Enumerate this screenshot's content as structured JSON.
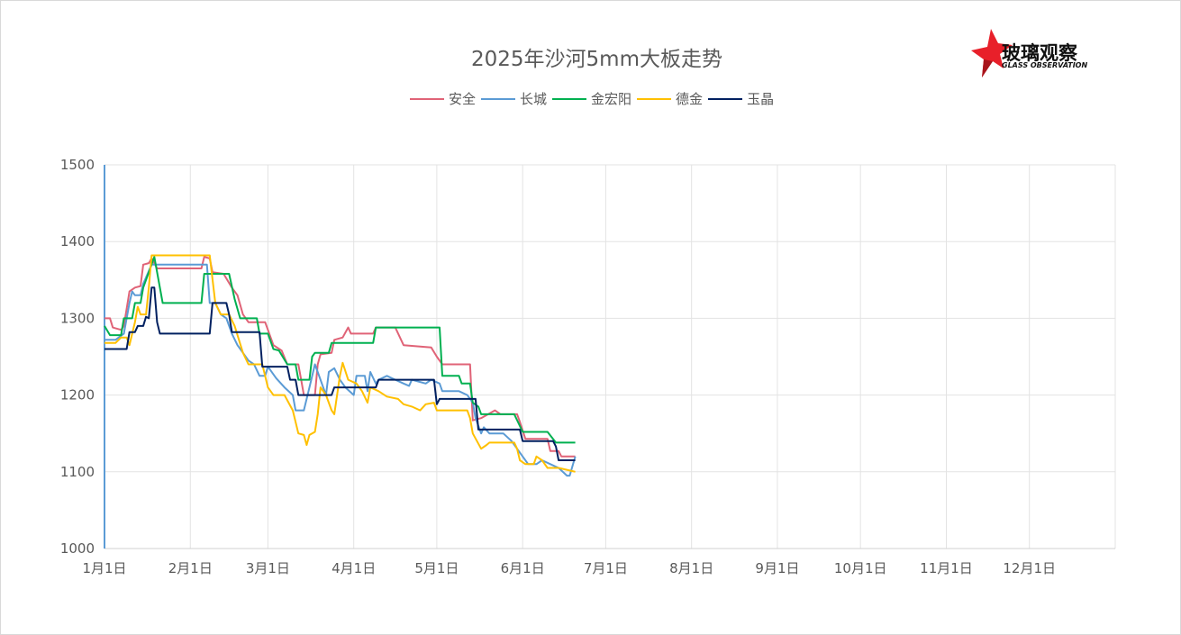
{
  "chart_data": {
    "type": "line",
    "title": "2025年沙河5mm大板走势",
    "xlabel": "",
    "ylabel": "",
    "xlim": [
      "2025-01-01",
      "2025-12-31"
    ],
    "ylim": [
      1000,
      1500
    ],
    "yticks": [
      1000,
      1100,
      1200,
      1300,
      1400,
      1500
    ],
    "xticks": [
      {
        "date": "2025-01-01",
        "label": "1月1日"
      },
      {
        "date": "2025-02-01",
        "label": "2月1日"
      },
      {
        "date": "2025-03-01",
        "label": "3月1日"
      },
      {
        "date": "2025-04-01",
        "label": "4月1日"
      },
      {
        "date": "2025-05-01",
        "label": "5月1日"
      },
      {
        "date": "2025-06-01",
        "label": "6月1日"
      },
      {
        "date": "2025-07-01",
        "label": "7月1日"
      },
      {
        "date": "2025-08-01",
        "label": "8月1日"
      },
      {
        "date": "2025-09-01",
        "label": "9月1日"
      },
      {
        "date": "2025-10-01",
        "label": "10月1日"
      },
      {
        "date": "2025-11-01",
        "label": "11月1日"
      },
      {
        "date": "2025-12-01",
        "label": "12月1日"
      }
    ],
    "grid": true,
    "legend_position": "top",
    "series": [
      {
        "name": "安全",
        "color": "#e06377",
        "points": [
          [
            "01-01",
            1300
          ],
          [
            "01-03",
            1300
          ],
          [
            "01-04",
            1288
          ],
          [
            "01-07",
            1285
          ],
          [
            "01-08",
            1290
          ],
          [
            "01-10",
            1335
          ],
          [
            "01-12",
            1340
          ],
          [
            "01-14",
            1342
          ],
          [
            "01-15",
            1370
          ],
          [
            "01-17",
            1372
          ],
          [
            "01-18",
            1378
          ],
          [
            "01-20",
            1365
          ],
          [
            "02-05",
            1365
          ],
          [
            "02-06",
            1380
          ],
          [
            "02-08",
            1378
          ],
          [
            "02-09",
            1360
          ],
          [
            "02-13",
            1358
          ],
          [
            "02-16",
            1340
          ],
          [
            "02-18",
            1330
          ],
          [
            "02-20",
            1305
          ],
          [
            "02-22",
            1295
          ],
          [
            "02-28",
            1295
          ],
          [
            "03-01",
            1285
          ],
          [
            "03-03",
            1265
          ],
          [
            "03-06",
            1258
          ],
          [
            "03-08",
            1240
          ],
          [
            "03-12",
            1240
          ],
          [
            "03-13",
            1220
          ],
          [
            "03-14",
            1200
          ],
          [
            "03-18",
            1200
          ],
          [
            "03-19",
            1240
          ],
          [
            "03-20",
            1253
          ],
          [
            "03-24",
            1255
          ],
          [
            "03-25",
            1272
          ],
          [
            "03-28",
            1275
          ],
          [
            "03-30",
            1288
          ],
          [
            "03-31",
            1280
          ],
          [
            "04-08",
            1280
          ],
          [
            "04-09",
            1288
          ],
          [
            "04-16",
            1288
          ],
          [
            "04-19",
            1265
          ],
          [
            "04-29",
            1262
          ],
          [
            "05-01",
            1250
          ],
          [
            "05-03",
            1240
          ],
          [
            "05-13",
            1240
          ],
          [
            "05-14",
            1167
          ],
          [
            "05-17",
            1170
          ],
          [
            "05-22",
            1180
          ],
          [
            "05-24",
            1175
          ],
          [
            "05-30",
            1175
          ],
          [
            "05-31",
            1165
          ],
          [
            "06-02",
            1143
          ],
          [
            "06-10",
            1143
          ],
          [
            "06-11",
            1127
          ],
          [
            "06-14",
            1127
          ],
          [
            "06-15",
            1120
          ],
          [
            "06-20",
            1120
          ]
        ]
      },
      {
        "name": "长城",
        "color": "#5b9bd5",
        "points": [
          [
            "01-01",
            1272
          ],
          [
            "01-05",
            1272
          ],
          [
            "01-08",
            1280
          ],
          [
            "01-10",
            1320
          ],
          [
            "01-11",
            1335
          ],
          [
            "01-12",
            1330
          ],
          [
            "01-14",
            1330
          ],
          [
            "01-15",
            1345
          ],
          [
            "01-18",
            1370
          ],
          [
            "02-07",
            1370
          ],
          [
            "02-08",
            1320
          ],
          [
            "02-10",
            1320
          ],
          [
            "02-12",
            1305
          ],
          [
            "02-14",
            1300
          ],
          [
            "02-16",
            1280
          ],
          [
            "02-18",
            1265
          ],
          [
            "02-20",
            1255
          ],
          [
            "02-22",
            1245
          ],
          [
            "02-24",
            1240
          ],
          [
            "02-26",
            1225
          ],
          [
            "02-28",
            1225
          ],
          [
            "03-01",
            1237
          ],
          [
            "03-04",
            1222
          ],
          [
            "03-07",
            1210
          ],
          [
            "03-10",
            1200
          ],
          [
            "03-11",
            1180
          ],
          [
            "03-14",
            1180
          ],
          [
            "03-16",
            1210
          ],
          [
            "03-18",
            1240
          ],
          [
            "03-19",
            1230
          ],
          [
            "03-21",
            1210
          ],
          [
            "03-22",
            1200
          ],
          [
            "03-23",
            1230
          ],
          [
            "03-25",
            1235
          ],
          [
            "03-27",
            1220
          ],
          [
            "03-29",
            1210
          ],
          [
            "04-01",
            1200
          ],
          [
            "04-02",
            1225
          ],
          [
            "04-05",
            1225
          ],
          [
            "04-06",
            1205
          ],
          [
            "04-07",
            1230
          ],
          [
            "04-09",
            1215
          ],
          [
            "04-10",
            1220
          ],
          [
            "04-13",
            1225
          ],
          [
            "04-16",
            1220
          ],
          [
            "04-19",
            1215
          ],
          [
            "04-21",
            1212
          ],
          [
            "04-22",
            1220
          ],
          [
            "04-27",
            1215
          ],
          [
            "04-29",
            1220
          ],
          [
            "05-02",
            1215
          ],
          [
            "05-03",
            1205
          ],
          [
            "05-09",
            1205
          ],
          [
            "05-12",
            1200
          ],
          [
            "05-14",
            1190
          ],
          [
            "05-15",
            1170
          ],
          [
            "05-17",
            1150
          ],
          [
            "05-18",
            1158
          ],
          [
            "05-20",
            1150
          ],
          [
            "05-25",
            1150
          ],
          [
            "05-28",
            1140
          ],
          [
            "05-30",
            1130
          ],
          [
            "06-01",
            1120
          ],
          [
            "06-03",
            1110
          ],
          [
            "06-06",
            1110
          ],
          [
            "06-08",
            1115
          ],
          [
            "06-11",
            1110
          ],
          [
            "06-14",
            1105
          ],
          [
            "06-17",
            1095
          ],
          [
            "06-18",
            1095
          ],
          [
            "06-20",
            1120
          ]
        ]
      },
      {
        "name": "金宏阳",
        "color": "#00b050",
        "points": [
          [
            "01-01",
            1290
          ],
          [
            "01-03",
            1278
          ],
          [
            "01-07",
            1278
          ],
          [
            "01-08",
            1300
          ],
          [
            "01-11",
            1300
          ],
          [
            "01-12",
            1320
          ],
          [
            "01-14",
            1320
          ],
          [
            "01-15",
            1340
          ],
          [
            "01-17",
            1360
          ],
          [
            "01-19",
            1380
          ],
          [
            "01-22",
            1320
          ],
          [
            "02-05",
            1320
          ],
          [
            "02-06",
            1358
          ],
          [
            "02-15",
            1358
          ],
          [
            "02-17",
            1325
          ],
          [
            "02-19",
            1300
          ],
          [
            "02-25",
            1300
          ],
          [
            "02-26",
            1280
          ],
          [
            "03-01",
            1280
          ],
          [
            "03-03",
            1260
          ],
          [
            "03-05",
            1258
          ],
          [
            "03-08",
            1240
          ],
          [
            "03-11",
            1240
          ],
          [
            "03-12",
            1220
          ],
          [
            "03-16",
            1220
          ],
          [
            "03-17",
            1250
          ],
          [
            "03-18",
            1255
          ],
          [
            "03-23",
            1255
          ],
          [
            "03-24",
            1268
          ],
          [
            "04-08",
            1268
          ],
          [
            "04-09",
            1288
          ],
          [
            "05-02",
            1288
          ],
          [
            "05-03",
            1225
          ],
          [
            "05-09",
            1225
          ],
          [
            "05-10",
            1215
          ],
          [
            "05-13",
            1215
          ],
          [
            "05-14",
            1190
          ],
          [
            "05-16",
            1185
          ],
          [
            "05-17",
            1175
          ],
          [
            "05-29",
            1175
          ],
          [
            "06-01",
            1152
          ],
          [
            "06-10",
            1152
          ],
          [
            "06-13",
            1138
          ],
          [
            "06-20",
            1138
          ]
        ]
      },
      {
        "name": "德金",
        "color": "#ffc000",
        "points": [
          [
            "01-01",
            1268
          ],
          [
            "01-05",
            1268
          ],
          [
            "01-07",
            1275
          ],
          [
            "01-09",
            1275
          ],
          [
            "01-10",
            1265
          ],
          [
            "01-12",
            1295
          ],
          [
            "01-13",
            1315
          ],
          [
            "01-14",
            1305
          ],
          [
            "01-16",
            1305
          ],
          [
            "01-17",
            1340
          ],
          [
            "01-18",
            1382
          ],
          [
            "02-08",
            1382
          ],
          [
            "02-10",
            1320
          ],
          [
            "02-12",
            1305
          ],
          [
            "02-15",
            1305
          ],
          [
            "02-17",
            1290
          ],
          [
            "02-20",
            1255
          ],
          [
            "02-22",
            1240
          ],
          [
            "02-27",
            1240
          ],
          [
            "02-28",
            1225
          ],
          [
            "03-01",
            1210
          ],
          [
            "03-03",
            1200
          ],
          [
            "03-07",
            1200
          ],
          [
            "03-10",
            1180
          ],
          [
            "03-12",
            1150
          ],
          [
            "03-14",
            1148
          ],
          [
            "03-15",
            1135
          ],
          [
            "03-16",
            1148
          ],
          [
            "03-18",
            1152
          ],
          [
            "03-19",
            1175
          ],
          [
            "03-20",
            1210
          ],
          [
            "03-22",
            1200
          ],
          [
            "03-24",
            1180
          ],
          [
            "03-25",
            1175
          ],
          [
            "03-27",
            1225
          ],
          [
            "03-28",
            1242
          ],
          [
            "03-30",
            1220
          ],
          [
            "04-02",
            1215
          ],
          [
            "04-04",
            1205
          ],
          [
            "04-06",
            1190
          ],
          [
            "04-07",
            1210
          ],
          [
            "04-10",
            1205
          ],
          [
            "04-13",
            1198
          ],
          [
            "04-17",
            1195
          ],
          [
            "04-19",
            1188
          ],
          [
            "04-22",
            1185
          ],
          [
            "04-25",
            1180
          ],
          [
            "04-27",
            1188
          ],
          [
            "04-30",
            1190
          ],
          [
            "05-01",
            1180
          ],
          [
            "05-12",
            1180
          ],
          [
            "05-13",
            1170
          ],
          [
            "05-14",
            1150
          ],
          [
            "05-17",
            1130
          ],
          [
            "05-19",
            1135
          ],
          [
            "05-20",
            1138
          ],
          [
            "05-29",
            1138
          ],
          [
            "05-30",
            1130
          ],
          [
            "05-31",
            1115
          ],
          [
            "06-02",
            1110
          ],
          [
            "06-05",
            1110
          ],
          [
            "06-06",
            1120
          ],
          [
            "06-08",
            1115
          ],
          [
            "06-10",
            1105
          ],
          [
            "06-14",
            1105
          ],
          [
            "06-20",
            1100
          ]
        ]
      },
      {
        "name": "玉晶",
        "color": "#002060",
        "points": [
          [
            "01-01",
            1260
          ],
          [
            "01-09",
            1260
          ],
          [
            "01-10",
            1282
          ],
          [
            "01-12",
            1282
          ],
          [
            "01-13",
            1290
          ],
          [
            "01-15",
            1290
          ],
          [
            "01-16",
            1302
          ],
          [
            "01-17",
            1300
          ],
          [
            "01-18",
            1340
          ],
          [
            "01-19",
            1340
          ],
          [
            "01-20",
            1295
          ],
          [
            "01-21",
            1280
          ],
          [
            "02-08",
            1280
          ],
          [
            "02-09",
            1320
          ],
          [
            "02-14",
            1320
          ],
          [
            "02-15",
            1305
          ],
          [
            "02-16",
            1282
          ],
          [
            "02-26",
            1282
          ],
          [
            "02-27",
            1237
          ],
          [
            "03-08",
            1237
          ],
          [
            "03-09",
            1220
          ],
          [
            "03-11",
            1220
          ],
          [
            "03-12",
            1200
          ],
          [
            "03-24",
            1200
          ],
          [
            "03-25",
            1210
          ],
          [
            "04-09",
            1210
          ],
          [
            "04-10",
            1220
          ],
          [
            "04-30",
            1220
          ],
          [
            "05-01",
            1188
          ],
          [
            "05-02",
            1195
          ],
          [
            "05-15",
            1195
          ],
          [
            "05-16",
            1155
          ],
          [
            "05-31",
            1155
          ],
          [
            "06-01",
            1140
          ],
          [
            "06-12",
            1140
          ],
          [
            "06-13",
            1133
          ],
          [
            "06-14",
            1115
          ],
          [
            "06-20",
            1115
          ]
        ]
      }
    ]
  },
  "logo": {
    "text_cn": "玻璃观察",
    "text_en": "GLASS OBSERVATION"
  }
}
